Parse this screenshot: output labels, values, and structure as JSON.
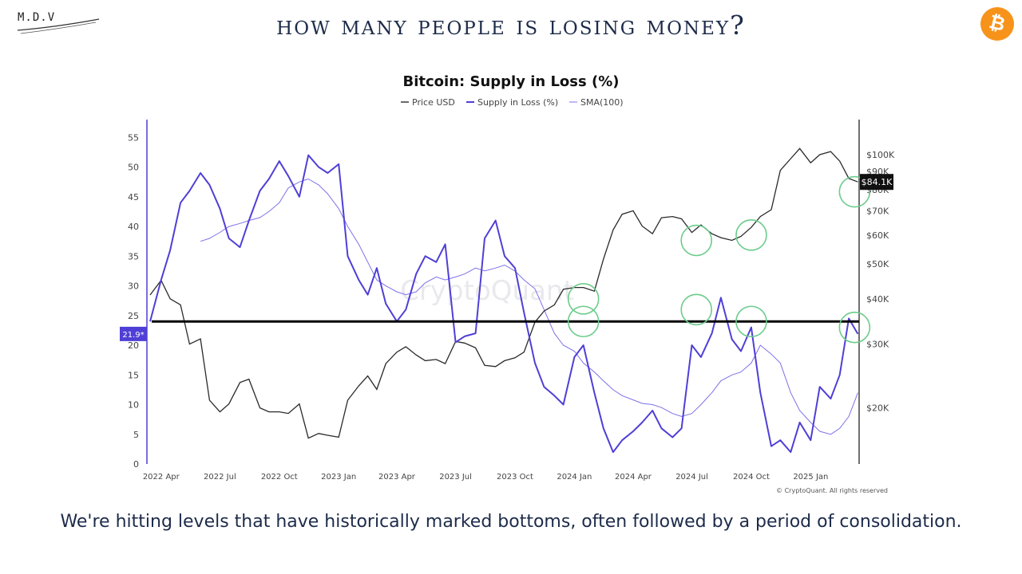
{
  "header": {
    "logo_text": "M.D.V",
    "title": "HOW MANY PEOPLE IS LOSING MONEY?",
    "badge_icon": "bitcoin-icon",
    "badge_color": "#f7931a"
  },
  "caption": "We're hitting levels that have historically marked bottoms, often followed by a period of consolidation.",
  "chart_data": {
    "type": "line",
    "title": "Bitcoin: Supply in Loss (%)",
    "legend": [
      "Price USD",
      "Supply in Loss (%)",
      "SMA(100)"
    ],
    "legend_position": "top-center",
    "series_colors": {
      "price": "#2a2a2a",
      "loss": "#4f3fd6",
      "sma": "#7d72e8"
    },
    "highlight_color": "#6ccc8c",
    "watermark": "CryptoQuant",
    "credit": "© CryptoQuant. All rights reserved",
    "x_ticks": [
      "2022 Apr",
      "2022 Jul",
      "2022 Oct",
      "2023 Jan",
      "2023 Apr",
      "2023 Jul",
      "2023 Oct",
      "2024 Jan",
      "2024 Apr",
      "2024 Jul",
      "2024 Oct",
      "2025 Jan"
    ],
    "y_left": {
      "label": "Supply in Loss (%)",
      "range": [
        0,
        58
      ],
      "ticks": [
        0,
        5,
        10,
        15,
        20,
        25,
        30,
        35,
        40,
        45,
        50,
        55
      ]
    },
    "y_right": {
      "label": "Price USD",
      "scale": "log",
      "range": [
        14000,
        125000
      ],
      "ticks": [
        20000,
        30000,
        40000,
        50000,
        60000,
        70000,
        80000,
        90000,
        100000
      ],
      "tick_labels": [
        "$20K",
        "$30K",
        "$40K",
        "$50K",
        "$60K",
        "$70K",
        "$80K",
        "$90K",
        "$100K"
      ]
    },
    "current_loss_label": "21.9*",
    "current_price_label": "$84.1K",
    "reference_line_y": 24,
    "dates": [
      "2022-03-15",
      "2022-04-01",
      "2022-04-15",
      "2022-05-01",
      "2022-05-15",
      "2022-06-01",
      "2022-06-15",
      "2022-07-01",
      "2022-07-15",
      "2022-08-01",
      "2022-08-15",
      "2022-09-01",
      "2022-09-15",
      "2022-10-01",
      "2022-10-15",
      "2022-11-01",
      "2022-11-15",
      "2022-12-01",
      "2022-12-15",
      "2023-01-01",
      "2023-01-15",
      "2023-02-01",
      "2023-02-15",
      "2023-03-01",
      "2023-03-15",
      "2023-04-01",
      "2023-04-15",
      "2023-05-01",
      "2023-05-15",
      "2023-06-01",
      "2023-06-15",
      "2023-07-01",
      "2023-07-15",
      "2023-08-01",
      "2023-08-15",
      "2023-09-01",
      "2023-09-15",
      "2023-10-01",
      "2023-10-15",
      "2023-11-01",
      "2023-11-15",
      "2023-12-01",
      "2023-12-15",
      "2024-01-01",
      "2024-01-15",
      "2024-02-01",
      "2024-02-15",
      "2024-03-01",
      "2024-03-15",
      "2024-04-01",
      "2024-04-15",
      "2024-05-01",
      "2024-05-15",
      "2024-06-01",
      "2024-06-15",
      "2024-07-01",
      "2024-07-15",
      "2024-08-01",
      "2024-08-15",
      "2024-09-01",
      "2024-09-15",
      "2024-10-01",
      "2024-10-15",
      "2024-11-01",
      "2024-11-15",
      "2024-12-01",
      "2024-12-15",
      "2025-01-01",
      "2025-01-15",
      "2025-02-01",
      "2025-02-15",
      "2025-03-01",
      "2025-03-15"
    ],
    "price_usd": [
      41000,
      45000,
      40000,
      38500,
      30000,
      31000,
      21000,
      19500,
      20500,
      23500,
      24000,
      20000,
      19500,
      19500,
      19300,
      20500,
      16500,
      17000,
      16800,
      16600,
      21000,
      23000,
      24500,
      22500,
      26500,
      28500,
      29500,
      28000,
      27000,
      27200,
      26500,
      30500,
      30200,
      29300,
      26200,
      26000,
      27000,
      27500,
      28500,
      34500,
      37000,
      38500,
      42500,
      43000,
      43000,
      42000,
      51500,
      62000,
      68500,
      70000,
      63500,
      60500,
      67000,
      67500,
      66500,
      61000,
      64000,
      60500,
      59000,
      58000,
      59500,
      63000,
      67500,
      70500,
      90500,
      97500,
      104000,
      95000,
      100000,
      102000,
      96000,
      86000,
      84100
    ],
    "supply_in_loss_pct": [
      24.0,
      31.0,
      36.0,
      44.0,
      46.0,
      49.0,
      47.0,
      43.0,
      38.0,
      36.5,
      41.0,
      46.0,
      48.0,
      51.0,
      48.5,
      45.0,
      52.0,
      50.0,
      49.0,
      50.5,
      35.0,
      31.0,
      28.5,
      33.0,
      27.0,
      24.0,
      26.0,
      32.0,
      35.0,
      34.0,
      37.0,
      20.5,
      21.5,
      22.0,
      38.0,
      41.0,
      35.0,
      33.0,
      25.5,
      17.0,
      13.0,
      11.5,
      10.0,
      18.0,
      20.0,
      12.0,
      6.0,
      2.0,
      4.0,
      5.5,
      7.0,
      9.0,
      6.0,
      4.5,
      6.0,
      20.0,
      18.0,
      22.0,
      28.0,
      21.0,
      19.0,
      23.0,
      12.0,
      3.0,
      4.0,
      2.0,
      7.0,
      4.0,
      13.0,
      11.0,
      15.0,
      24.5,
      21.9
    ],
    "sma_100": [
      null,
      null,
      null,
      null,
      null,
      37.5,
      38.0,
      39.0,
      40.0,
      40.5,
      41.0,
      41.5,
      42.5,
      44.0,
      46.5,
      47.5,
      48.0,
      47.0,
      45.5,
      43.0,
      40.0,
      37.0,
      34.0,
      31.0,
      30.0,
      29.0,
      28.5,
      29.0,
      30.5,
      31.5,
      31.0,
      31.5,
      32.0,
      33.0,
      32.5,
      33.0,
      33.5,
      32.5,
      31.0,
      29.5,
      26.0,
      22.0,
      20.0,
      19.0,
      17.0,
      15.5,
      14.0,
      12.5,
      11.5,
      10.8,
      10.2,
      10.0,
      9.5,
      8.5,
      8.0,
      8.5,
      10.0,
      12.0,
      14.0,
      15.0,
      15.5,
      17.0,
      20.0,
      18.5,
      17.0,
      12.0,
      9.0,
      7.0,
      5.5,
      5.0,
      6.0,
      8.0,
      12.0
    ],
    "highlighted_lows": [
      {
        "series": "loss",
        "date": "2024-01-15",
        "value": 24
      },
      {
        "series": "loss",
        "date": "2024-07-08",
        "value": 26
      },
      {
        "series": "loss",
        "date": "2024-10-01",
        "value": 24
      },
      {
        "series": "loss",
        "date": "2025-03-10",
        "value": 23
      },
      {
        "series": "price",
        "date": "2024-01-15",
        "value": 40000
      },
      {
        "series": "price",
        "date": "2024-07-08",
        "value": 58000
      },
      {
        "series": "price",
        "date": "2024-10-01",
        "value": 60000
      },
      {
        "series": "price",
        "date": "2025-03-10",
        "value": 79000
      }
    ]
  }
}
